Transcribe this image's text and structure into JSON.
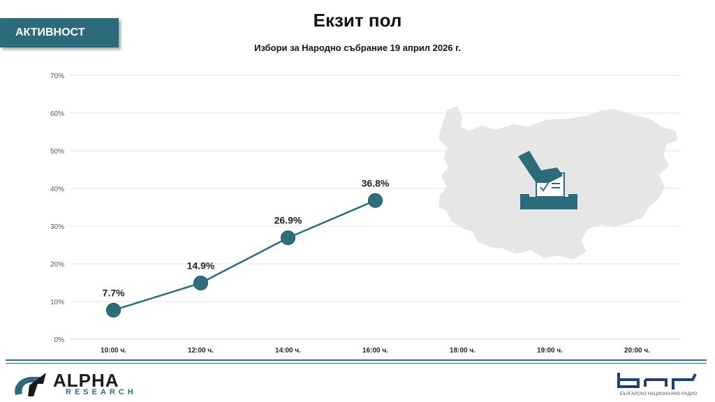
{
  "badge": {
    "label": "АКТИВНОСТ"
  },
  "header": {
    "title": "Екзит пол",
    "subtitle": "Избори за Народно събрание 19 април 2026 г."
  },
  "chart_data": {
    "type": "line",
    "categories": [
      "10:00 ч.",
      "12:00 ч.",
      "14:00 ч.",
      "16:00 ч.",
      "18:00 ч.",
      "19:00 ч.",
      "20:00 ч."
    ],
    "series": [
      {
        "values": [
          7.7,
          14.9,
          26.9,
          36.8,
          null,
          null,
          null
        ]
      }
    ],
    "data_labels": [
      "7.7%",
      "14.9%",
      "26.9%",
      "36.8%"
    ],
    "ylim": [
      0,
      70
    ],
    "yticks": [
      "0%",
      "10%",
      "20%",
      "30%",
      "40%",
      "50%",
      "60%",
      "70%"
    ],
    "grid": true,
    "colors": {
      "line": "#2b6b7b",
      "marker": "#2e6d7c",
      "grid": "#e3e3e3",
      "map": "#e6e6e6"
    }
  },
  "footer": {
    "left_logo": {
      "name": "ALPHA",
      "sub": "RESEARCH"
    },
    "right_logo": {
      "name": "БНР",
      "sub": "БЪЛГАРСКО НАЦИОНАЛНО РАДИО"
    }
  },
  "colors": {
    "accent": "#2b6b7b"
  }
}
